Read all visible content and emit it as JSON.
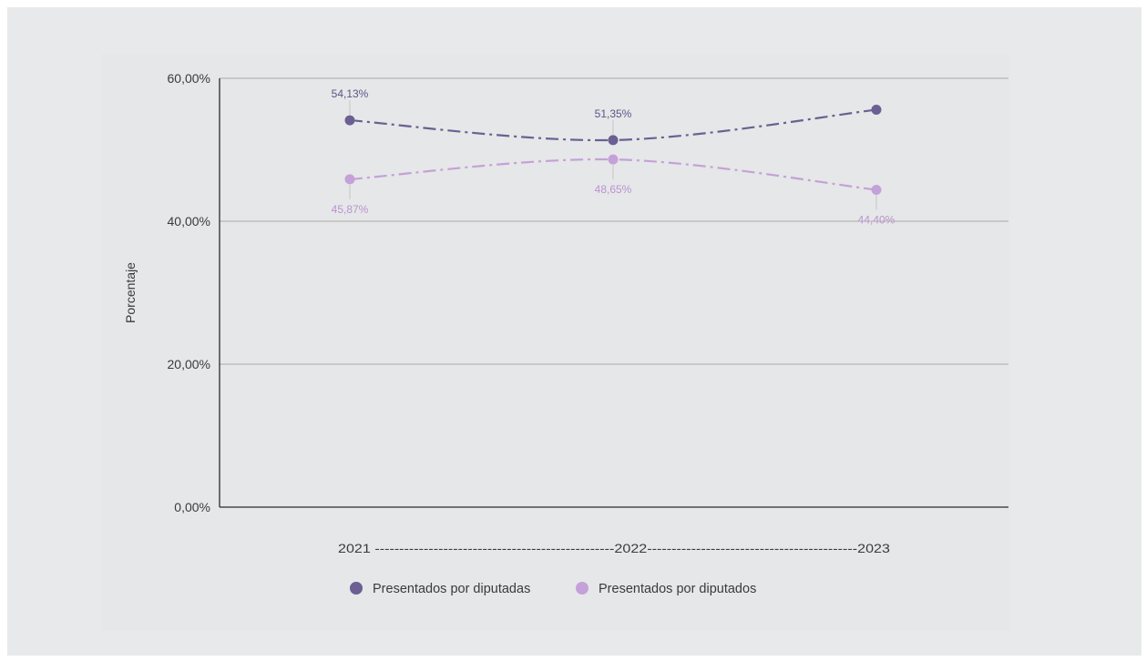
{
  "chart_data": {
    "type": "line",
    "title": "",
    "xlabel": "",
    "ylabel": "Porcentaje",
    "x": [
      "2021",
      "2022",
      "2023"
    ],
    "ylim": [
      0,
      60
    ],
    "yticks": [
      0,
      20,
      40,
      60
    ],
    "yticks_labels": [
      "0,00%",
      "20,00%",
      "40,00%",
      "60,00%"
    ],
    "x_axis_text": "2021 -------------------------------------------------2022-------------------------------------------2023",
    "grid": true,
    "legend": "bottom",
    "series": [
      {
        "name": "Presentados por diputadas",
        "color": "#6b5f93",
        "values": [
          54.13,
          51.35,
          55.6
        ],
        "labels": [
          "54,13%",
          "51,35%",
          ""
        ],
        "label_position": "above"
      },
      {
        "name": "Presentados por diputados",
        "color": "#c4a1d8",
        "values": [
          45.87,
          48.65,
          44.4
        ],
        "labels": [
          "45,87%",
          "48,65%",
          "44,40%"
        ],
        "label_position": "below"
      }
    ]
  }
}
